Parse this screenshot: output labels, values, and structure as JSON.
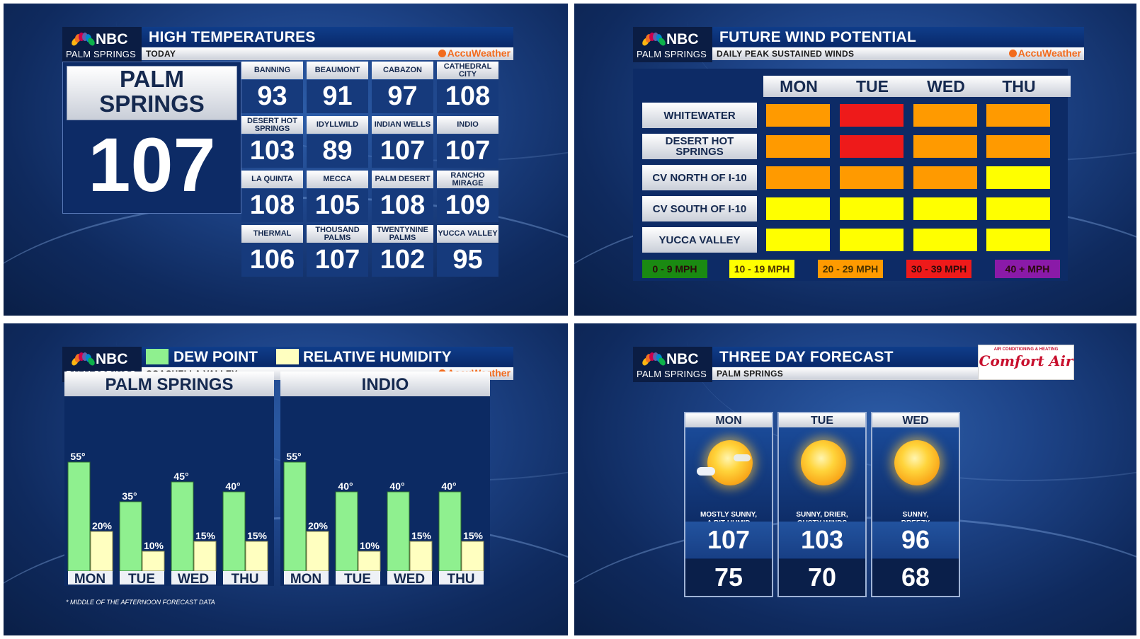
{
  "station": {
    "network": "NBC",
    "city": "PALM SPRINGS",
    "provider": "AccuWeather"
  },
  "high_temps": {
    "title": "HIGH TEMPERATURES",
    "subtitle": "TODAY",
    "featured": {
      "name_line1": "PALM",
      "name_line2": "SPRINGS",
      "value": "107"
    },
    "cities": [
      {
        "name": "BANNING",
        "value": "93"
      },
      {
        "name": "BEAUMONT",
        "value": "91"
      },
      {
        "name": "CABAZON",
        "value": "97"
      },
      {
        "name": "CATHEDRAL CITY",
        "value": "108"
      },
      {
        "name": "DESERT HOT SPRINGS",
        "value": "103"
      },
      {
        "name": "IDYLLWILD",
        "value": "89"
      },
      {
        "name": "INDIAN WELLS",
        "value": "107"
      },
      {
        "name": "INDIO",
        "value": "107"
      },
      {
        "name": "LA QUINTA",
        "value": "108"
      },
      {
        "name": "MECCA",
        "value": "105"
      },
      {
        "name": "PALM DESERT",
        "value": "108"
      },
      {
        "name": "RANCHO MIRAGE",
        "value": "109"
      },
      {
        "name": "THERMAL",
        "value": "106"
      },
      {
        "name": "THOUSAND PALMS",
        "value": "107"
      },
      {
        "name": "TWENTYNINE PALMS",
        "value": "102"
      },
      {
        "name": "YUCCA VALLEY",
        "value": "95"
      }
    ]
  },
  "wind": {
    "title": "FUTURE WIND POTENTIAL",
    "subtitle": "DAILY PEAK SUSTAINED WINDS",
    "days": [
      "MON",
      "TUE",
      "WED",
      "THU"
    ],
    "locations": [
      {
        "name": "WHITEWATER",
        "levels": [
          "20 - 29 MPH",
          "30 - 39 MPH",
          "20 - 29 MPH",
          "20 - 29 MPH"
        ]
      },
      {
        "name": "DESERT HOT SPRINGS",
        "levels": [
          "20 - 29 MPH",
          "30 - 39 MPH",
          "20 - 29 MPH",
          "20 - 29 MPH"
        ]
      },
      {
        "name": "CV NORTH OF I-10",
        "levels": [
          "20 - 29 MPH",
          "20 - 29 MPH",
          "20 - 29 MPH",
          "10 - 19 MPH"
        ]
      },
      {
        "name": "CV SOUTH OF I-10",
        "levels": [
          "10 - 19 MPH",
          "10 - 19 MPH",
          "10 - 19 MPH",
          "10 - 19 MPH"
        ]
      },
      {
        "name": "YUCCA VALLEY",
        "levels": [
          "10 - 19 MPH",
          "10 - 19 MPH",
          "10 - 19 MPH",
          "10 - 19 MPH"
        ]
      }
    ],
    "legend": [
      {
        "label": "0 - 9 MPH",
        "color": "#1a8a12"
      },
      {
        "label": "10 - 19 MPH",
        "color": "#ffff00"
      },
      {
        "label": "20 - 29 MPH",
        "color": "#ff9a00"
      },
      {
        "label": "30 - 39 MPH",
        "color": "#ee1a1a"
      },
      {
        "label": "40 + MPH",
        "color": "#8a1aa8"
      }
    ]
  },
  "dew": {
    "legend_dew": "DEW POINT",
    "legend_rh": "RELATIVE HUMIDITY",
    "subtitle": "COACHELLA VALLEY",
    "footnote": "* MIDDLE OF THE AFTERNOON FORECAST DATA",
    "dew_color": "#8ff08f",
    "rh_color": "#ffffc0"
  },
  "three_day": {
    "title": "THREE DAY FORECAST",
    "subtitle": "PALM SPRINGS",
    "sponsor": "Comfort Air",
    "sponsor_tagline": "AIR CONDITIONING & HEATING",
    "days": [
      {
        "day": "MON",
        "desc1": "MOSTLY SUNNY,",
        "desc2": "A BIT HUMID",
        "high": "107",
        "low": "75",
        "icon": "mostly-sunny-icon"
      },
      {
        "day": "TUE",
        "desc1": "SUNNY, DRIER,",
        "desc2": "GUSTY WINDS",
        "high": "103",
        "low": "70",
        "icon": "sunny-icon"
      },
      {
        "day": "WED",
        "desc1": "SUNNY,",
        "desc2": "BREEZY",
        "high": "96",
        "low": "68",
        "icon": "sunny-icon"
      }
    ]
  },
  "chart_data": [
    {
      "type": "bar",
      "title": "PALM SPRINGS",
      "categories": [
        "MON",
        "TUE",
        "WED",
        "THU"
      ],
      "series": [
        {
          "name": "DEW POINT",
          "values": [
            55,
            35,
            45,
            40
          ],
          "labels": [
            "55°",
            "35°",
            "45°",
            "40°"
          ]
        },
        {
          "name": "RELATIVE HUMIDITY",
          "values": [
            20,
            10,
            15,
            15
          ],
          "labels": [
            "20%",
            "10%",
            "15%",
            "15%"
          ]
        }
      ]
    },
    {
      "type": "bar",
      "title": "INDIO",
      "categories": [
        "MON",
        "TUE",
        "WED",
        "THU"
      ],
      "series": [
        {
          "name": "DEW POINT",
          "values": [
            55,
            40,
            40,
            40
          ],
          "labels": [
            "55°",
            "40°",
            "40°",
            "40°"
          ]
        },
        {
          "name": "RELATIVE HUMIDITY",
          "values": [
            20,
            10,
            15,
            15
          ],
          "labels": [
            "20%",
            "10%",
            "15%",
            "15%"
          ]
        }
      ]
    }
  ]
}
